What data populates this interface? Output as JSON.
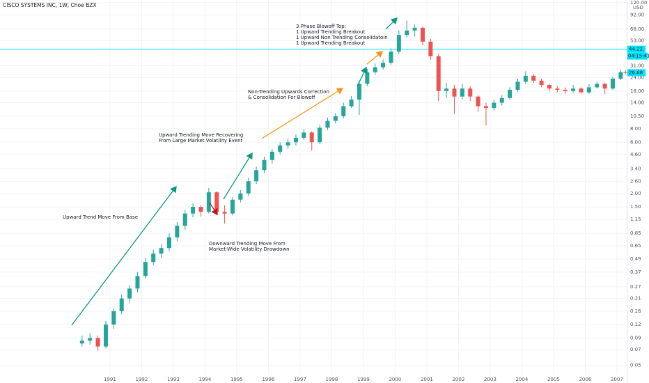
{
  "chart_data": {
    "type": "candlestick",
    "title": "CISCO SYSTEMS INC, 1W, Choe BZX",
    "currency": "USD",
    "log_scale": true,
    "grid": true,
    "up_color": "#26a69a",
    "down_color": "#ef5350",
    "x": [
      1990.12,
      1990.37,
      1990.62,
      1990.87,
      1991.12,
      1991.37,
      1991.62,
      1991.87,
      1992.12,
      1992.37,
      1992.62,
      1992.87,
      1993.12,
      1993.37,
      1993.62,
      1993.87,
      1994.12,
      1994.37,
      1994.62,
      1994.87,
      1995.12,
      1995.37,
      1995.62,
      1995.87,
      1996.12,
      1996.37,
      1996.62,
      1996.87,
      1997.12,
      1997.37,
      1997.62,
      1997.87,
      1998.12,
      1998.37,
      1998.62,
      1998.87,
      1999.12,
      1999.37,
      1999.62,
      1999.87,
      2000.12,
      2000.37,
      2000.62,
      2000.87,
      2001.12,
      2001.37,
      2001.62,
      2001.87,
      2002.12,
      2002.37,
      2002.62,
      2002.87,
      2003.12,
      2003.37,
      2003.62,
      2003.87,
      2004.12,
      2004.37,
      2004.62,
      2004.87,
      2005.12,
      2005.37,
      2005.62,
      2005.87,
      2006.12,
      2006.37,
      2006.62,
      2006.87,
      2007.12,
      2007.27
    ],
    "open": [
      0.08,
      0.085,
      0.09,
      0.075,
      0.12,
      0.16,
      0.21,
      0.26,
      0.34,
      0.46,
      0.55,
      0.62,
      0.78,
      1.0,
      1.3,
      1.5,
      1.35,
      2.05,
      1.35,
      1.3,
      1.75,
      2.0,
      2.6,
      3.3,
      4.1,
      4.9,
      5.6,
      6.0,
      6.6,
      7.4,
      6.0,
      8.2,
      9.5,
      10.5,
      13.0,
      15.0,
      21.0,
      27.0,
      30.0,
      33.0,
      42.0,
      60.0,
      66.0,
      70.0,
      52.0,
      38.0,
      18.0,
      19.0,
      16.0,
      19.0,
      16.0,
      13.0,
      12.5,
      14.0,
      15.5,
      18.5,
      22.0,
      25.0,
      22.5,
      20.5,
      19.0,
      18.5,
      18.0,
      19.0,
      17.5,
      19.5,
      21.0,
      19.0,
      23.5,
      27.0
    ],
    "high": [
      0.095,
      0.1,
      0.095,
      0.13,
      0.17,
      0.23,
      0.28,
      0.37,
      0.5,
      0.6,
      0.67,
      0.85,
      1.08,
      1.4,
      1.62,
      1.55,
      2.25,
      2.1,
      1.55,
      1.85,
      2.15,
      2.8,
      3.55,
      4.4,
      5.2,
      6.0,
      6.5,
      7.1,
      7.9,
      7.6,
      8.7,
      10.2,
      11.2,
      14.0,
      16.2,
      22.5,
      29.0,
      32.5,
      35.5,
      45.0,
      66.0,
      82.0,
      75.0,
      72.0,
      55.0,
      40.0,
      21.5,
      20.5,
      21.0,
      20.0,
      16.5,
      14.0,
      15.0,
      16.5,
      19.5,
      23.5,
      27.5,
      26.0,
      23.5,
      21.0,
      20.0,
      19.5,
      20.5,
      19.5,
      21.0,
      22.0,
      21.5,
      24.5,
      28.5,
      28.0
    ],
    "low": [
      0.075,
      0.078,
      0.068,
      0.072,
      0.11,
      0.15,
      0.19,
      0.24,
      0.32,
      0.43,
      0.5,
      0.58,
      0.72,
      0.92,
      1.2,
      1.22,
      1.3,
      1.25,
      1.05,
      1.25,
      1.65,
      1.9,
      2.45,
      3.1,
      3.8,
      4.6,
      5.2,
      5.6,
      6.3,
      5.0,
      5.8,
      7.8,
      9.0,
      10.0,
      12.5,
      10.8,
      20.0,
      25.5,
      28.5,
      31.5,
      40.0,
      57.0,
      58.0,
      48.0,
      35.0,
      14.5,
      15.5,
      11.0,
      15.0,
      14.5,
      11.5,
      8.6,
      11.8,
      13.2,
      15.0,
      17.8,
      21.0,
      21.5,
      19.5,
      18.0,
      17.5,
      17.0,
      17.5,
      17.0,
      17.0,
      19.0,
      16.8,
      18.5,
      22.8,
      25.8
    ],
    "close": [
      0.085,
      0.09,
      0.075,
      0.12,
      0.16,
      0.21,
      0.26,
      0.34,
      0.46,
      0.55,
      0.62,
      0.78,
      1.0,
      1.3,
      1.5,
      1.35,
      2.05,
      1.35,
      1.3,
      1.75,
      2.0,
      2.6,
      3.3,
      4.1,
      4.9,
      5.6,
      6.0,
      6.6,
      7.4,
      6.0,
      8.2,
      9.5,
      10.5,
      13.0,
      15.0,
      21.0,
      27.0,
      30.0,
      33.0,
      42.0,
      60.0,
      66.0,
      70.0,
      52.0,
      38.0,
      18.0,
      19.0,
      16.0,
      19.0,
      16.0,
      13.0,
      12.5,
      14.0,
      15.5,
      18.5,
      22.0,
      25.0,
      22.5,
      20.5,
      19.0,
      18.5,
      18.0,
      19.0,
      17.5,
      19.5,
      21.0,
      19.0,
      23.5,
      27.0,
      26.68
    ],
    "xlim": [
      1987.53,
      2007.31
    ],
    "xticks": [
      1991,
      1992,
      1993,
      1994,
      1995,
      1996,
      1997,
      1998,
      1999,
      2000,
      2001,
      2002,
      2003,
      2004,
      2005,
      2006,
      2007
    ],
    "ylim": [
      0.041,
      127
    ],
    "yticks": [
      {
        "value": 120,
        "label": "120.00"
      },
      {
        "value": 92,
        "label": "92.00"
      },
      {
        "value": 68,
        "label": "68.00"
      },
      {
        "value": 53,
        "label": "53.00"
      },
      {
        "value": 31,
        "label": "31.00"
      },
      {
        "value": 24,
        "label": "24.00"
      },
      {
        "value": 18,
        "label": "18.00"
      },
      {
        "value": 14,
        "label": "14.00"
      },
      {
        "value": 10.5,
        "label": "10.50"
      },
      {
        "value": 8,
        "label": "8.00"
      },
      {
        "value": 6,
        "label": "6.00"
      },
      {
        "value": 4.6,
        "label": "4.60"
      },
      {
        "value": 3.4,
        "label": "3.40"
      },
      {
        "value": 2.6,
        "label": "2.60"
      },
      {
        "value": 2,
        "label": "2.00"
      },
      {
        "value": 1.5,
        "label": "1.50"
      },
      {
        "value": 1.15,
        "label": "1.15"
      },
      {
        "value": 0.85,
        "label": "0.85"
      },
      {
        "value": 0.65,
        "label": "0.65"
      },
      {
        "value": 0.49,
        "label": "0.49"
      },
      {
        "value": 0.37,
        "label": "0.37"
      },
      {
        "value": 0.27,
        "label": "0.27"
      },
      {
        "value": 0.21,
        "label": "0.21"
      },
      {
        "value": 0.16,
        "label": "0.16"
      },
      {
        "value": 0.12,
        "label": "0.12"
      },
      {
        "value": 0.09,
        "label": "0.09"
      },
      {
        "value": 0.07,
        "label": "0.07"
      },
      {
        "value": 0.05,
        "label": "0.05"
      }
    ],
    "price_line": 44.22,
    "price_line_color": "#00e5ff",
    "countdown": "04:15:41",
    "annotations": [
      [
        "Upward Trend Move From Base"
      ],
      [
        "Downward Trending Move From",
        "Market-Wide Volatility Drawdown"
      ],
      [
        "Upward Trending Move Recovering",
        "From Large Market Volatility Event"
      ],
      [
        "Non-Trending Upwards Correction",
        "& Consolidation For Blowoff"
      ],
      [
        "3 Phase Blowoff Top:",
        "1 Upward Trending Breakout",
        "1 Upward Non Trending Consolidatoin",
        "1 Upward Trending Breakout"
      ]
    ]
  }
}
